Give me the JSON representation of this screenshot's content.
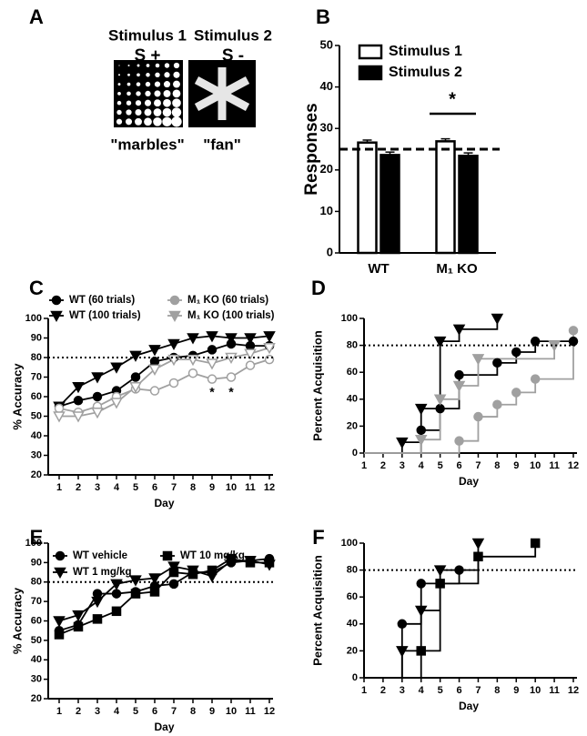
{
  "panel_a": {
    "label": "A",
    "stimuli": [
      {
        "name": "Stimulus 1",
        "sign": "S +",
        "caption": "\"marbles\""
      },
      {
        "name": "Stimulus 2",
        "sign": "S -",
        "caption": "\"fan\""
      }
    ]
  },
  "chart_data": [
    {
      "type": "bar",
      "panel_label": "B",
      "ylabel": "Responses",
      "categories": [
        "WT",
        "M₁ KO"
      ],
      "series": [
        {
          "name": "Stimulus 1",
          "color": "#ffffff",
          "values": [
            26.6,
            26.9
          ],
          "errors": [
            0.6,
            0.6
          ]
        },
        {
          "name": "Stimulus 2",
          "color": "#000000",
          "values": [
            23.6,
            23.4
          ],
          "errors": [
            0.7,
            0.7
          ]
        }
      ],
      "ylim": [
        0,
        50
      ],
      "yticks": [
        0,
        10,
        20,
        30,
        40,
        50
      ],
      "reference_line": 25,
      "reference_style": "dashed",
      "annotations": [
        "*"
      ]
    },
    {
      "type": "line",
      "panel_label": "C",
      "ylabel": "% Accuracy",
      "xlabel": "Day",
      "x": [
        1,
        2,
        3,
        4,
        5,
        6,
        7,
        8,
        9,
        10,
        11,
        12
      ],
      "series": [
        {
          "name": "WT (60 trials)",
          "color": "#000000",
          "marker": "circle",
          "filled": true,
          "values": [
            55,
            58,
            60,
            63,
            70,
            78,
            80,
            81,
            84,
            87,
            86,
            86
          ]
        },
        {
          "name": "WT (100 trials)",
          "color": "#000000",
          "marker": "triangle",
          "filled": true,
          "values": [
            55,
            65,
            70,
            75,
            81,
            84,
            87,
            90,
            91,
            90,
            90,
            91
          ]
        },
        {
          "name": "M₁ KO (60 trials)",
          "color": "#a0a0a0",
          "marker": "circle",
          "filled": false,
          "values": [
            54,
            52,
            55,
            60,
            64,
            63,
            67,
            72,
            69,
            70,
            76,
            79
          ]
        },
        {
          "name": "M₁ KO (100 trials)",
          "color": "#a0a0a0",
          "marker": "triangle",
          "filled": false,
          "values": [
            50,
            50,
            52,
            57,
            65,
            74,
            79,
            79,
            77,
            80,
            82,
            85
          ]
        }
      ],
      "xlim": [
        1,
        12
      ],
      "xticks": [
        1,
        2,
        3,
        4,
        5,
        6,
        7,
        8,
        9,
        10,
        11,
        12
      ],
      "ylim": [
        20,
        100
      ],
      "yticks": [
        20,
        30,
        40,
        50,
        60,
        70,
        80,
        90,
        100
      ],
      "reference_line": 80,
      "reference_style": "dotted",
      "annotations": [
        "*",
        "*"
      ]
    },
    {
      "type": "step",
      "panel_label": "D",
      "ylabel": "Percent Acquisition",
      "xlabel": "Day",
      "series": [
        {
          "color": "#000000",
          "marker": "circle",
          "filled": true,
          "x": [
            4,
            5,
            6,
            8,
            9,
            10,
            12
          ],
          "values": [
            17,
            33,
            58,
            67,
            75,
            83,
            83
          ]
        },
        {
          "color": "#000000",
          "marker": "triangle",
          "filled": true,
          "x": [
            3,
            4,
            5,
            6,
            8
          ],
          "values": [
            8,
            33,
            83,
            92,
            100
          ]
        },
        {
          "color": "#a0a0a0",
          "marker": "circle",
          "filled": true,
          "x": [
            6,
            7,
            8,
            9,
            10,
            12
          ],
          "values": [
            9,
            27,
            36,
            45,
            55,
            91
          ]
        },
        {
          "color": "#a0a0a0",
          "marker": "triangle",
          "filled": true,
          "x": [
            4,
            5,
            6,
            7,
            11
          ],
          "values": [
            10,
            40,
            50,
            70,
            80
          ]
        }
      ],
      "xlim": [
        1,
        12
      ],
      "xticks": [
        1,
        2,
        3,
        4,
        5,
        6,
        7,
        8,
        9,
        10,
        11,
        12
      ],
      "ylim": [
        0,
        100
      ],
      "yticks": [
        0,
        20,
        40,
        60,
        80,
        100
      ],
      "reference_line": 80,
      "reference_style": "dotted"
    },
    {
      "type": "line",
      "panel_label": "E",
      "ylabel": "% Accuracy",
      "xlabel": "Day",
      "x": [
        1,
        2,
        3,
        4,
        5,
        6,
        7,
        8,
        9,
        10,
        11,
        12
      ],
      "series": [
        {
          "name": "WT vehicle",
          "color": "#000000",
          "marker": "circle",
          "filled": true,
          "values": [
            55,
            58,
            74,
            74,
            75,
            78,
            79,
            85,
            85,
            90,
            91,
            92
          ]
        },
        {
          "name": "WT 1 mg/kg",
          "color": "#000000",
          "marker": "triangle",
          "filled": true,
          "values": [
            60,
            63,
            70,
            79,
            81,
            82,
            88,
            86,
            83,
            91,
            91,
            89
          ]
        },
        {
          "name": "WT 10 mg/kg",
          "color": "#000000",
          "marker": "square",
          "filled": true,
          "values": [
            53,
            57,
            61,
            65,
            74,
            75,
            85,
            84,
            86,
            92,
            90,
            90
          ]
        }
      ],
      "xlim": [
        1,
        12
      ],
      "xticks": [
        1,
        2,
        3,
        4,
        5,
        6,
        7,
        8,
        9,
        10,
        11,
        12
      ],
      "ylim": [
        20,
        100
      ],
      "yticks": [
        20,
        30,
        40,
        50,
        60,
        70,
        80,
        90,
        100
      ],
      "reference_line": 80,
      "reference_style": "dotted"
    },
    {
      "type": "step",
      "panel_label": "F",
      "ylabel": "Percent Acquisition",
      "xlabel": "Day",
      "series": [
        {
          "color": "#000000",
          "marker": "circle",
          "filled": true,
          "x": [
            3,
            4,
            6
          ],
          "values": [
            40,
            70,
            80
          ]
        },
        {
          "color": "#000000",
          "marker": "triangle",
          "filled": true,
          "x": [
            3,
            4,
            5,
            7
          ],
          "values": [
            20,
            50,
            80,
            100
          ]
        },
        {
          "color": "#000000",
          "marker": "square",
          "filled": true,
          "x": [
            4,
            5,
            7,
            10
          ],
          "values": [
            20,
            70,
            90,
            100
          ]
        }
      ],
      "xlim": [
        1,
        12
      ],
      "xticks": [
        1,
        2,
        3,
        4,
        5,
        6,
        7,
        8,
        9,
        10,
        11,
        12
      ],
      "ylim": [
        0,
        100
      ],
      "yticks": [
        0,
        20,
        40,
        60,
        80,
        100
      ],
      "reference_line": 80,
      "reference_style": "dotted"
    }
  ]
}
